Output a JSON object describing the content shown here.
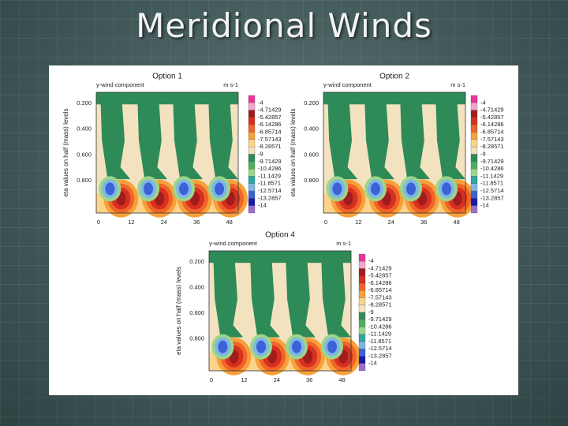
{
  "title": "Meridional Winds",
  "panels": [
    {
      "title": "Option 1",
      "subtitle": "y-wind component",
      "units": "m s-1",
      "ylabel": "eta values on half (mass) levels",
      "yticks": [
        "0.200",
        "0.400",
        "0.600",
        "0.800"
      ],
      "xticks": [
        "0",
        "12",
        "24",
        "36",
        "48"
      ],
      "colorbar": [
        "-4",
        "-4.71429",
        "-5.42857",
        "-6.14286",
        "-6.85714",
        "-7.57143",
        "-8.28571",
        "-9",
        "-9.71429",
        "-10.4286",
        "-11.1429",
        "-11.8571",
        "-12.5714",
        "-13.2857",
        "-14"
      ]
    },
    {
      "title": "Option 2",
      "subtitle": "y-wind component",
      "units": "m s-1",
      "ylabel": "eta values on half (mass) levels",
      "yticks": [
        "0.200",
        "0.400",
        "0.600",
        "0.800"
      ],
      "xticks": [
        "0",
        "12",
        "24",
        "36",
        "48"
      ],
      "colorbar": [
        "-4",
        "-4.71429",
        "-5.42857",
        "-6.14286",
        "-6.85714",
        "-7.57143",
        "-8.28571",
        "-9",
        "-9.71429",
        "-10.4286",
        "-11.1429",
        "-11.8571",
        "-12.5714",
        "-13.2857",
        "-14"
      ]
    },
    {
      "title": "Option 4",
      "subtitle": "y-wind component",
      "units": "m s-1",
      "ylabel": "eta values on half (mass) levels",
      "yticks": [
        "0.200",
        "0.400",
        "0.600",
        "0.800"
      ],
      "xticks": [
        "0",
        "12",
        "24",
        "36",
        "48"
      ],
      "colorbar": [
        "-4",
        "-4.71429",
        "-5.42857",
        "-6.14286",
        "-6.85714",
        "-7.57143",
        "-8.28571",
        "-9",
        "-9.71429",
        "-10.4286",
        "-11.1429",
        "-11.8571",
        "-12.5714",
        "-13.2857",
        "-14"
      ]
    }
  ]
}
